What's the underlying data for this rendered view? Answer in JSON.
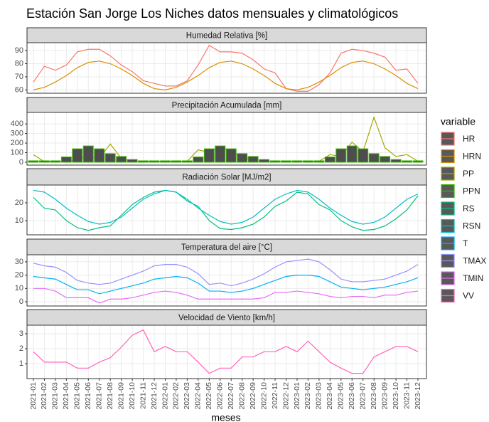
{
  "chart_data": {
    "type": "facet",
    "title": "Estación San Jorge Los Niches datos mensuales y climatológicos",
    "xlabel": "meses",
    "legend_title": "variable",
    "grid": true,
    "categories": [
      "2021-01",
      "2021-02",
      "2021-03",
      "2021-04",
      "2021-05",
      "2021-06",
      "2021-07",
      "2021-08",
      "2021-09",
      "2021-10",
      "2021-11",
      "2021-12",
      "2022-01",
      "2022-02",
      "2022-03",
      "2022-04",
      "2022-05",
      "2022-06",
      "2022-07",
      "2022-08",
      "2022-09",
      "2022-10",
      "2022-11",
      "2022-12",
      "2023-01",
      "2023-02",
      "2023-03",
      "2023-04",
      "2023-05",
      "2023-06",
      "2023-07",
      "2023-08",
      "2023-09",
      "2023-10",
      "2023-11",
      "2023-12"
    ],
    "panels": [
      {
        "title": "Humedad Relativa [%]",
        "ylim": [
          57.5,
          96
        ],
        "yticks": [
          60,
          70,
          80,
          90
        ],
        "series": [
          {
            "name": "HR",
            "type": "line",
            "color": "#F8766D",
            "values": [
              66,
              78,
              75,
              79,
              89,
              91,
              91,
              86,
              79,
              74,
              67,
              65,
              63,
              63,
              67,
              79,
              94,
              89,
              89,
              88,
              83,
              76,
              73,
              61,
              59,
              59,
              64,
              73,
              88,
              91,
              90,
              88,
              85,
              75,
              76,
              65
            ]
          },
          {
            "name": "HRN",
            "type": "line",
            "color": "#D89000",
            "values": [
              60,
              62,
              66,
              71,
              77,
              81,
              82,
              80,
              76,
              71,
              65,
              61,
              60,
              62,
              66,
              71,
              77,
              81,
              82,
              80,
              76,
              71,
              65,
              61,
              60,
              62,
              66,
              71,
              77,
              81,
              82,
              80,
              76,
              71,
              65,
              61
            ]
          }
        ]
      },
      {
        "title": "Precipitación Acumulada [mm]",
        "ylim": [
          -30,
          520
        ],
        "yticks": [
          0,
          100,
          200,
          300,
          400
        ],
        "series": [
          {
            "name": "PP",
            "type": "line",
            "color": "#A3A500",
            "values": [
              80,
              5,
              5,
              5,
              30,
              60,
              40,
              190,
              40,
              5,
              5,
              5,
              5,
              5,
              10,
              130,
              100,
              170,
              110,
              50,
              20,
              5,
              5,
              5,
              5,
              10,
              10,
              80,
              60,
              210,
              110,
              470,
              150,
              60,
              80,
              10
            ]
          },
          {
            "name": "PPN",
            "type": "bar",
            "color": "#39B600",
            "values": [
              15,
              15,
              15,
              55,
              140,
              170,
              140,
              90,
              60,
              28,
              15,
              15,
              15,
              15,
              15,
              55,
              140,
              170,
              140,
              90,
              60,
              28,
              15,
              15,
              15,
              15,
              15,
              55,
              140,
              170,
              140,
              90,
              60,
              28,
              15,
              15
            ]
          }
        ]
      },
      {
        "title": "Radiación Solar [MJ/m2]",
        "ylim": [
          2,
          30
        ],
        "yticks": [
          10,
          20
        ],
        "series": [
          {
            "name": "RS",
            "type": "line",
            "color": "#00BF7D",
            "values": [
              23,
              17,
              16,
              10,
              6,
              4.5,
              6,
              7,
              13,
              19,
              23,
              26,
              27,
              26,
              21,
              18,
              10,
              5.5,
              5,
              6,
              8,
              12,
              18,
              21,
              26,
              25,
              19,
              16,
              10,
              6.5,
              4.5,
              5,
              7,
              11,
              16,
              24
            ]
          },
          {
            "name": "RSN",
            "type": "line",
            "color": "#00BFC4",
            "values": [
              27,
              26,
              22,
              17,
              13,
              9.5,
              8,
              9,
              12,
              17,
              22,
              25,
              27,
              26,
              22,
              17,
              13,
              9.5,
              8,
              9,
              12,
              17,
              22,
              25,
              27,
              26,
              22,
              17,
              13,
              9.5,
              8,
              9,
              12,
              17,
              22,
              25
            ]
          }
        ]
      },
      {
        "title": "Temperatura del aire [°C]",
        "ylim": [
          -3.2,
          35.3
        ],
        "yticks": [
          0,
          10,
          20,
          30
        ],
        "series": [
          {
            "name": "T",
            "type": "line",
            "color": "#00B0F6",
            "values": [
              19,
              18,
              17,
              13,
              9,
              9,
              6,
              8,
              10,
              12,
              14,
              17,
              18,
              19,
              18,
              14,
              8,
              8,
              7,
              8,
              10,
              13,
              16,
              19,
              20,
              20,
              19,
              15,
              11,
              10,
              9,
              10,
              11,
              13,
              15,
              18
            ]
          },
          {
            "name": "TMAX",
            "type": "line",
            "color": "#9590FF",
            "values": [
              29,
              27,
              26,
              22,
              16,
              14,
              13,
              14,
              17,
              20,
              23,
              27,
              28,
              28,
              26,
              21,
              13,
              14,
              12,
              14,
              17,
              21,
              26,
              30,
              31,
              32,
              30,
              24,
              17,
              15,
              15,
              16,
              17,
              20,
              23,
              28
            ]
          },
          {
            "name": "TMIN",
            "type": "line",
            "color": "#E76BF3",
            "values": [
              10,
              10,
              8,
              3,
              3,
              3,
              -1,
              2,
              2,
              3,
              5,
              7,
              8,
              7,
              5,
              2,
              2,
              2,
              2,
              2,
              2,
              3,
              7,
              7,
              8,
              7,
              6,
              4,
              3,
              4,
              4,
              3,
              5,
              5,
              7,
              8
            ]
          }
        ]
      },
      {
        "title": "Velocidad de Viento [km/h]",
        "ylim": [
          0,
          3.57
        ],
        "yticks": [
          1,
          2,
          3
        ],
        "series": [
          {
            "name": "VV",
            "type": "line",
            "color": "#FF62BC",
            "values": [
              1.8,
              1.1,
              1.1,
              1.1,
              0.7,
              0.7,
              1.1,
              1.4,
              2.1,
              2.9,
              3.25,
              1.8,
              2.15,
              1.8,
              1.8,
              1.1,
              0.35,
              0.7,
              0.7,
              1.45,
              1.45,
              1.8,
              1.8,
              2.15,
              1.8,
              2.5,
              1.8,
              1.1,
              0.7,
              0.35,
              0.35,
              1.45,
              1.8,
              2.15,
              2.15,
              1.8
            ]
          }
        ]
      }
    ]
  }
}
